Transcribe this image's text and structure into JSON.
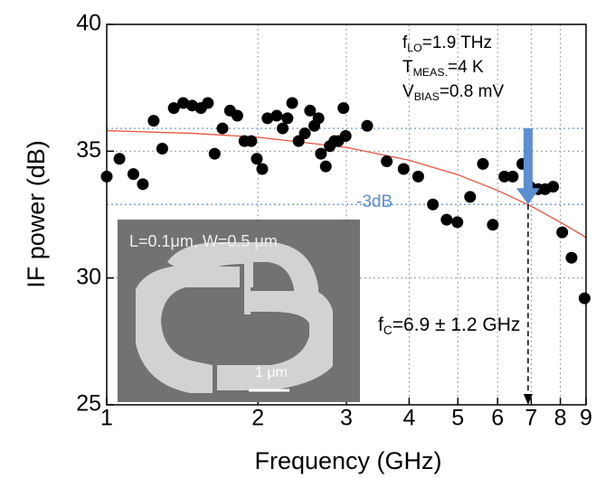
{
  "chart_data": {
    "type": "scatter",
    "x_label": "Frequency (GHz)",
    "y_label": "IF power (dB)",
    "xlim": [
      1,
      9
    ],
    "ylim": [
      25,
      40
    ],
    "xscale": "log",
    "xticks": [
      1,
      2,
      3,
      4,
      5,
      6,
      7,
      8,
      9
    ],
    "yticks": [
      25,
      30,
      35,
      40
    ],
    "grid": true,
    "series": [
      {
        "color": "#000000",
        "x": [
          1.0,
          1.06,
          1.13,
          1.18,
          1.24,
          1.29,
          1.36,
          1.42,
          1.48,
          1.54,
          1.59,
          1.64,
          1.7,
          1.76,
          1.82,
          1.88,
          1.94,
          1.99,
          2.04,
          2.09,
          2.18,
          2.24,
          2.29,
          2.34,
          2.41,
          2.48,
          2.54,
          2.59,
          2.64,
          2.67,
          2.73,
          2.78,
          2.84,
          2.89,
          2.96,
          2.99,
          3.3,
          3.61,
          3.9,
          4.17,
          4.46,
          4.75,
          4.99,
          5.29,
          5.61,
          5.87,
          6.19,
          6.43,
          6.72,
          6.96,
          7.23,
          7.46,
          7.74,
          8.07,
          8.42,
          8.94
        ],
        "values": [
          34.0,
          34.7,
          34.1,
          33.7,
          36.2,
          35.1,
          36.7,
          36.9,
          36.8,
          36.7,
          36.9,
          34.9,
          35.9,
          36.6,
          36.4,
          35.4,
          35.4,
          34.7,
          34.3,
          36.3,
          36.4,
          35.9,
          36.3,
          36.9,
          35.4,
          35.7,
          36.6,
          36.0,
          36.3,
          34.9,
          34.4,
          35.2,
          35.4,
          35.4,
          36.7,
          35.6,
          36.0,
          34.6,
          34.3,
          34.0,
          32.9,
          32.3,
          32.2,
          33.2,
          34.5,
          32.1,
          34.0,
          34.0,
          34.5,
          33.6,
          33.5,
          33.5,
          33.6,
          31.8,
          30.8,
          29.2
        ]
      }
    ],
    "fit": {
      "color": "#e8533a",
      "x": [
        1,
        1.5,
        2,
        3,
        4,
        5,
        6,
        7,
        8,
        9
      ],
      "values": [
        35.81,
        35.7,
        35.55,
        35.15,
        34.64,
        34.07,
        33.45,
        32.83,
        32.2,
        31.6
      ]
    },
    "reference_lines": [
      35.9,
      32.9
    ],
    "reference_color": "#5b8fd0",
    "cutoff_frequency": 6.9,
    "drop_label": "-3dB",
    "annotations": [
      {
        "base": "f",
        "sub": "LO",
        "rest": "=1.9 THz"
      },
      {
        "base": "T",
        "sub": "MEAS.",
        "rest": "=4 K"
      },
      {
        "base": "V",
        "sub": "BIAS",
        "rest": "=0.8 mV"
      }
    ],
    "cutoff_label": {
      "base": "f",
      "sub": "C",
      "rest": "=6.9 ± 1.2 GHz"
    },
    "inset": {
      "caption": "L=0.1μm, W=0.5 μm",
      "scale_bar": "1 μm"
    }
  }
}
